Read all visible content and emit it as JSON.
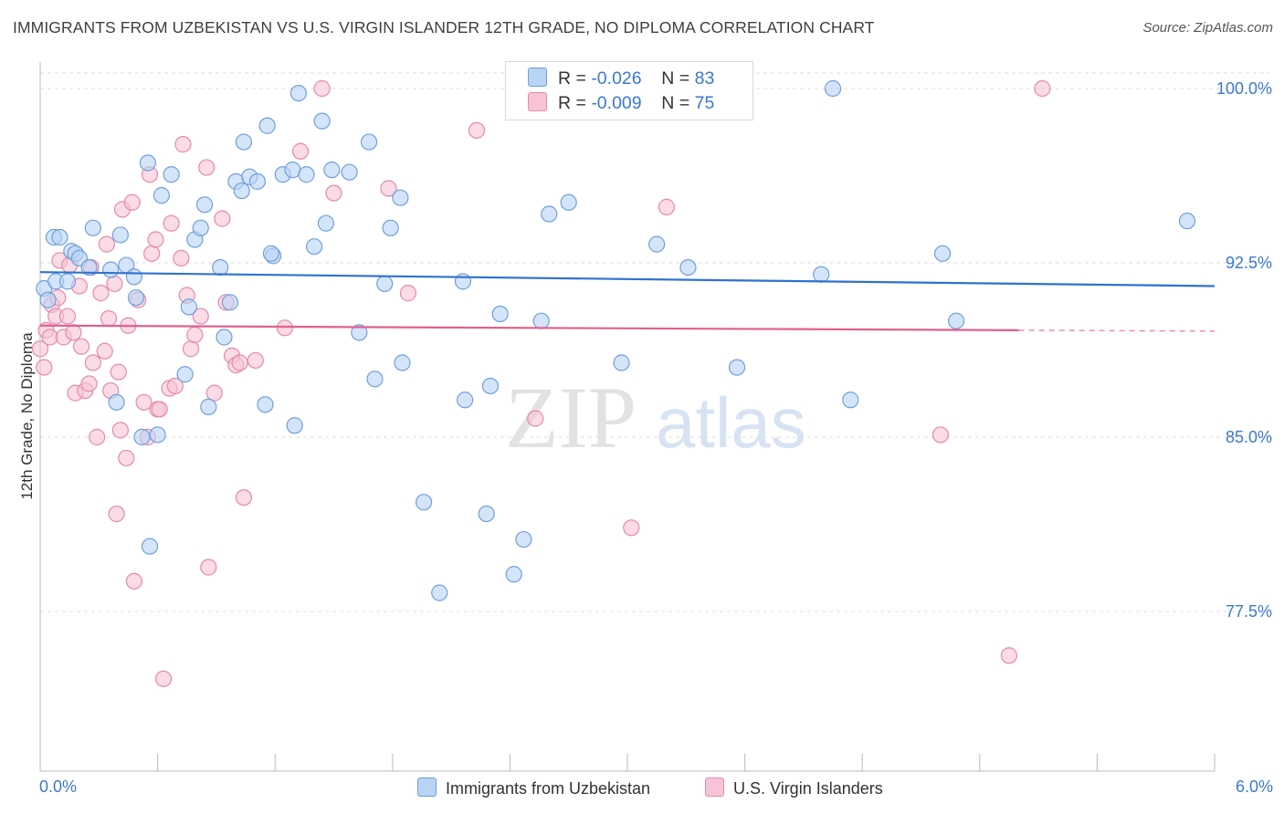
{
  "title": "IMMIGRANTS FROM UZBEKISTAN VS U.S. VIRGIN ISLANDER 12TH GRADE, NO DIPLOMA CORRELATION CHART",
  "source": "Source: ZipAtlas.com",
  "watermark": {
    "zip": "ZIP",
    "atlas": "atlas"
  },
  "legend_stats": {
    "r_label": "R =",
    "n_label": "N =",
    "series1": {
      "r": "-0.026",
      "n": "83"
    },
    "series2": {
      "r": "-0.009",
      "n": "75"
    }
  },
  "x_tick_labels": {
    "left": "0.0%",
    "right": "6.0%"
  },
  "colors": {
    "series1_fill": "#b9d3f5",
    "series1_stroke": "#6f9fdc",
    "series1_line": "#2f72d0",
    "series2_fill": "#f7c3d6",
    "series2_stroke": "#e58aab",
    "series2_line": "#e0608f",
    "tick_text": "#3a78d4",
    "grid": "#dddddd"
  },
  "chart_data": {
    "type": "scatter",
    "title": "IMMIGRANTS FROM UZBEKISTAN VS U.S. VIRGIN ISLANDER 12TH GRADE, NO DIPLOMA CORRELATION CHART",
    "xlabel": "",
    "ylabel": "12th Grade, No Diploma",
    "xlim": [
      0,
      6.0
    ],
    "ylim": [
      70.0,
      101.5
    ],
    "y_ticks": [
      77.5,
      85.0,
      92.5,
      100.0
    ],
    "y_tick_labels": [
      "77.5%",
      "85.0%",
      "92.5%",
      "100.0%"
    ],
    "grid": "horizontal dashed",
    "legend_placement": "bottom-center",
    "series": [
      {
        "name": "Immigrants from Uzbekistan",
        "trend": {
          "x": [
            0,
            6.0
          ],
          "y": [
            92.1,
            91.5
          ]
        },
        "points": [
          [
            0.02,
            91.4
          ],
          [
            0.07,
            93.6
          ],
          [
            0.1,
            93.6
          ],
          [
            0.08,
            91.7
          ],
          [
            0.16,
            93.0
          ],
          [
            0.18,
            92.9
          ],
          [
            0.2,
            92.7
          ],
          [
            0.25,
            92.3
          ],
          [
            0.27,
            94.0
          ],
          [
            0.36,
            92.2
          ],
          [
            0.41,
            93.7
          ],
          [
            0.44,
            92.4
          ],
          [
            0.48,
            91.9
          ],
          [
            0.49,
            91.0
          ],
          [
            0.55,
            96.8
          ],
          [
            0.62,
            95.4
          ],
          [
            0.67,
            96.3
          ],
          [
            0.74,
            87.7
          ],
          [
            0.76,
            90.6
          ],
          [
            0.79,
            93.5
          ],
          [
            0.82,
            94.0
          ],
          [
            0.84,
            95.0
          ],
          [
            0.86,
            86.3
          ],
          [
            0.92,
            92.3
          ],
          [
            0.94,
            89.3
          ],
          [
            0.97,
            90.8
          ],
          [
            1.0,
            96.0
          ],
          [
            1.03,
            95.6
          ],
          [
            1.04,
            97.7
          ],
          [
            1.07,
            96.2
          ],
          [
            1.11,
            96.0
          ],
          [
            1.15,
            86.4
          ],
          [
            1.16,
            98.4
          ],
          [
            1.19,
            92.8
          ],
          [
            1.24,
            96.3
          ],
          [
            1.29,
            96.5
          ],
          [
            1.32,
            99.8
          ],
          [
            1.36,
            96.3
          ],
          [
            1.4,
            93.2
          ],
          [
            1.44,
            98.6
          ],
          [
            1.46,
            94.2
          ],
          [
            1.49,
            96.5
          ],
          [
            1.58,
            96.4
          ],
          [
            1.63,
            89.5
          ],
          [
            1.68,
            97.7
          ],
          [
            1.71,
            87.5
          ],
          [
            1.76,
            91.6
          ],
          [
            1.79,
            94.0
          ],
          [
            1.84,
            95.3
          ],
          [
            1.85,
            88.2
          ],
          [
            1.96,
            82.2
          ],
          [
            2.17,
            86.6
          ],
          [
            2.28,
            81.7
          ],
          [
            2.3,
            87.2
          ],
          [
            2.35,
            90.3
          ],
          [
            2.42,
            79.1
          ],
          [
            2.47,
            80.6
          ],
          [
            2.56,
            90.0
          ],
          [
            2.6,
            94.6
          ],
          [
            2.7,
            95.1
          ],
          [
            2.73,
            99.3
          ],
          [
            2.91,
            100.0
          ],
          [
            2.97,
            88.2
          ],
          [
            3.15,
            93.3
          ],
          [
            3.31,
            92.3
          ],
          [
            3.56,
            88.0
          ],
          [
            3.99,
            92.0
          ],
          [
            4.05,
            100.0
          ],
          [
            4.14,
            86.6
          ],
          [
            4.61,
            92.9
          ],
          [
            4.68,
            90.0
          ],
          [
            5.86,
            94.3
          ],
          [
            0.6,
            85.1
          ],
          [
            0.52,
            85.0
          ],
          [
            0.39,
            86.5
          ],
          [
            1.3,
            85.5
          ],
          [
            0.56,
            80.3
          ],
          [
            2.04,
            78.3
          ],
          [
            0.04,
            90.9
          ],
          [
            0.14,
            91.7
          ],
          [
            1.18,
            92.9
          ],
          [
            2.16,
            91.7
          ],
          [
            2.63,
            99.1
          ]
        ]
      },
      {
        "name": "U.S. Virgin Islanders",
        "trend": {
          "x": [
            0,
            5.0
          ],
          "y": [
            89.8,
            89.6
          ]
        },
        "points": [
          [
            0.0,
            88.8
          ],
          [
            0.02,
            88.0
          ],
          [
            0.03,
            89.6
          ],
          [
            0.05,
            89.3
          ],
          [
            0.06,
            90.7
          ],
          [
            0.08,
            90.2
          ],
          [
            0.09,
            91.0
          ],
          [
            0.1,
            92.6
          ],
          [
            0.12,
            89.3
          ],
          [
            0.14,
            90.2
          ],
          [
            0.15,
            92.4
          ],
          [
            0.17,
            89.5
          ],
          [
            0.18,
            86.9
          ],
          [
            0.2,
            91.5
          ],
          [
            0.21,
            88.9
          ],
          [
            0.23,
            87.0
          ],
          [
            0.25,
            87.3
          ],
          [
            0.26,
            92.3
          ],
          [
            0.27,
            88.2
          ],
          [
            0.29,
            85.0
          ],
          [
            0.31,
            91.2
          ],
          [
            0.33,
            88.7
          ],
          [
            0.34,
            93.3
          ],
          [
            0.35,
            90.1
          ],
          [
            0.36,
            87.0
          ],
          [
            0.38,
            91.6
          ],
          [
            0.39,
            81.7
          ],
          [
            0.4,
            87.8
          ],
          [
            0.41,
            85.3
          ],
          [
            0.42,
            94.8
          ],
          [
            0.44,
            84.1
          ],
          [
            0.45,
            89.8
          ],
          [
            0.47,
            95.1
          ],
          [
            0.48,
            78.8
          ],
          [
            0.5,
            90.9
          ],
          [
            0.53,
            86.5
          ],
          [
            0.55,
            85.0
          ],
          [
            0.56,
            96.3
          ],
          [
            0.57,
            92.9
          ],
          [
            0.59,
            93.5
          ],
          [
            0.6,
            86.2
          ],
          [
            0.61,
            86.2
          ],
          [
            0.63,
            74.6
          ],
          [
            0.66,
            87.1
          ],
          [
            0.67,
            94.2
          ],
          [
            0.69,
            87.2
          ],
          [
            0.72,
            92.7
          ],
          [
            0.73,
            97.6
          ],
          [
            0.75,
            91.1
          ],
          [
            0.77,
            88.8
          ],
          [
            0.79,
            89.4
          ],
          [
            0.82,
            90.2
          ],
          [
            0.85,
            96.6
          ],
          [
            0.89,
            86.9
          ],
          [
            0.93,
            94.4
          ],
          [
            0.95,
            90.8
          ],
          [
            0.98,
            88.5
          ],
          [
            1.0,
            88.1
          ],
          [
            1.02,
            88.2
          ],
          [
            1.04,
            82.4
          ],
          [
            1.1,
            88.3
          ],
          [
            1.25,
            89.7
          ],
          [
            1.33,
            97.3
          ],
          [
            1.44,
            100.0
          ],
          [
            1.5,
            95.5
          ],
          [
            1.78,
            95.7
          ],
          [
            1.88,
            91.2
          ],
          [
            2.23,
            98.2
          ],
          [
            2.53,
            85.8
          ],
          [
            3.02,
            81.1
          ],
          [
            3.2,
            94.9
          ],
          [
            4.6,
            85.1
          ],
          [
            5.12,
            100.0
          ],
          [
            4.95,
            75.6
          ],
          [
            0.86,
            79.4
          ]
        ]
      }
    ]
  },
  "bottom_legend": {
    "series1_label": "Immigrants from Uzbekistan",
    "series2_label": "U.S. Virgin Islanders"
  }
}
